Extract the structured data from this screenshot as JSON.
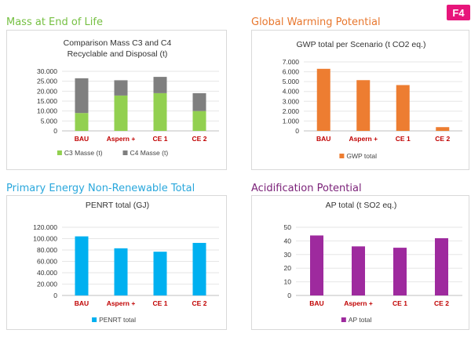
{
  "badge": "F4",
  "sections": [
    {
      "title": "Mass at End of Life",
      "color": "#76c043"
    },
    {
      "title": "Global Warming Potential",
      "color": "#e8772e"
    },
    {
      "title": "Primary Energy Non-Renewable Total",
      "color": "#29a7dc"
    },
    {
      "title": "Acidification Potential",
      "color": "#7b2279"
    }
  ],
  "chart_data": [
    {
      "type": "bar",
      "stacked": true,
      "title": "Comparison Mass C3 and C4 Recyclable and Disposal (t)",
      "title_lines": [
        "Comparison Mass C3 and C4",
        "Recyclable and Disposal (t)"
      ],
      "categories": [
        "BAU",
        "Aspern +",
        "CE 1",
        "CE 2"
      ],
      "series": [
        {
          "name": "C3 Masse (t)",
          "color": "#92d050",
          "values": [
            9000,
            17800,
            19000,
            10000
          ]
        },
        {
          "name": "C4 Masse (t)",
          "color": "#7f7f7f",
          "values": [
            17500,
            7700,
            8200,
            9000
          ]
        }
      ],
      "yticks": [
        "0",
        "5.000",
        "10.000",
        "15.000",
        "20.000",
        "25.000",
        "30.000"
      ],
      "ylim": [
        0,
        30000
      ],
      "legend": "bottom"
    },
    {
      "type": "bar",
      "title": "GWP total per Scenario (t CO2 eq.)",
      "title_lines": [
        "GWP total per Scenario (t CO2 eq.)"
      ],
      "categories": [
        "BAU",
        "Aspern +",
        "CE 1",
        "CE 2"
      ],
      "series": [
        {
          "name": "GWP total",
          "color": "#ed7d31",
          "values": [
            6300,
            5150,
            4650,
            380
          ]
        }
      ],
      "yticks": [
        "0",
        "1.000",
        "2.000",
        "3.000",
        "4.000",
        "5.000",
        "6.000",
        "7.000"
      ],
      "ylim": [
        0,
        7000
      ],
      "legend": "bottom"
    },
    {
      "type": "bar",
      "title": "PENRT total (GJ)",
      "title_lines": [
        "PENRT total (GJ)"
      ],
      "categories": [
        "BAU",
        "Aspern +",
        "CE 1",
        "CE 2"
      ],
      "series": [
        {
          "name": "PENRT total",
          "color": "#00b0f0",
          "values": [
            104000,
            83000,
            77000,
            92500
          ]
        }
      ],
      "yticks": [
        "0",
        "20.000",
        "40.000",
        "60.000",
        "80.000",
        "100.000",
        "120.000"
      ],
      "ylim": [
        0,
        120000
      ],
      "legend": "bottom"
    },
    {
      "type": "bar",
      "title": "AP total (t SO2 eq.)",
      "title_lines": [
        "AP total (t SO2 eq.)"
      ],
      "categories": [
        "BAU",
        "Aspern +",
        "CE 1",
        "CE 2"
      ],
      "series": [
        {
          "name": "AP total",
          "color": "#9e2a9e",
          "values": [
            44,
            36,
            35,
            42
          ]
        }
      ],
      "yticks": [
        "0",
        "10",
        "20",
        "30",
        "40",
        "50"
      ],
      "ylim": [
        0,
        50
      ],
      "legend": "bottom"
    }
  ]
}
